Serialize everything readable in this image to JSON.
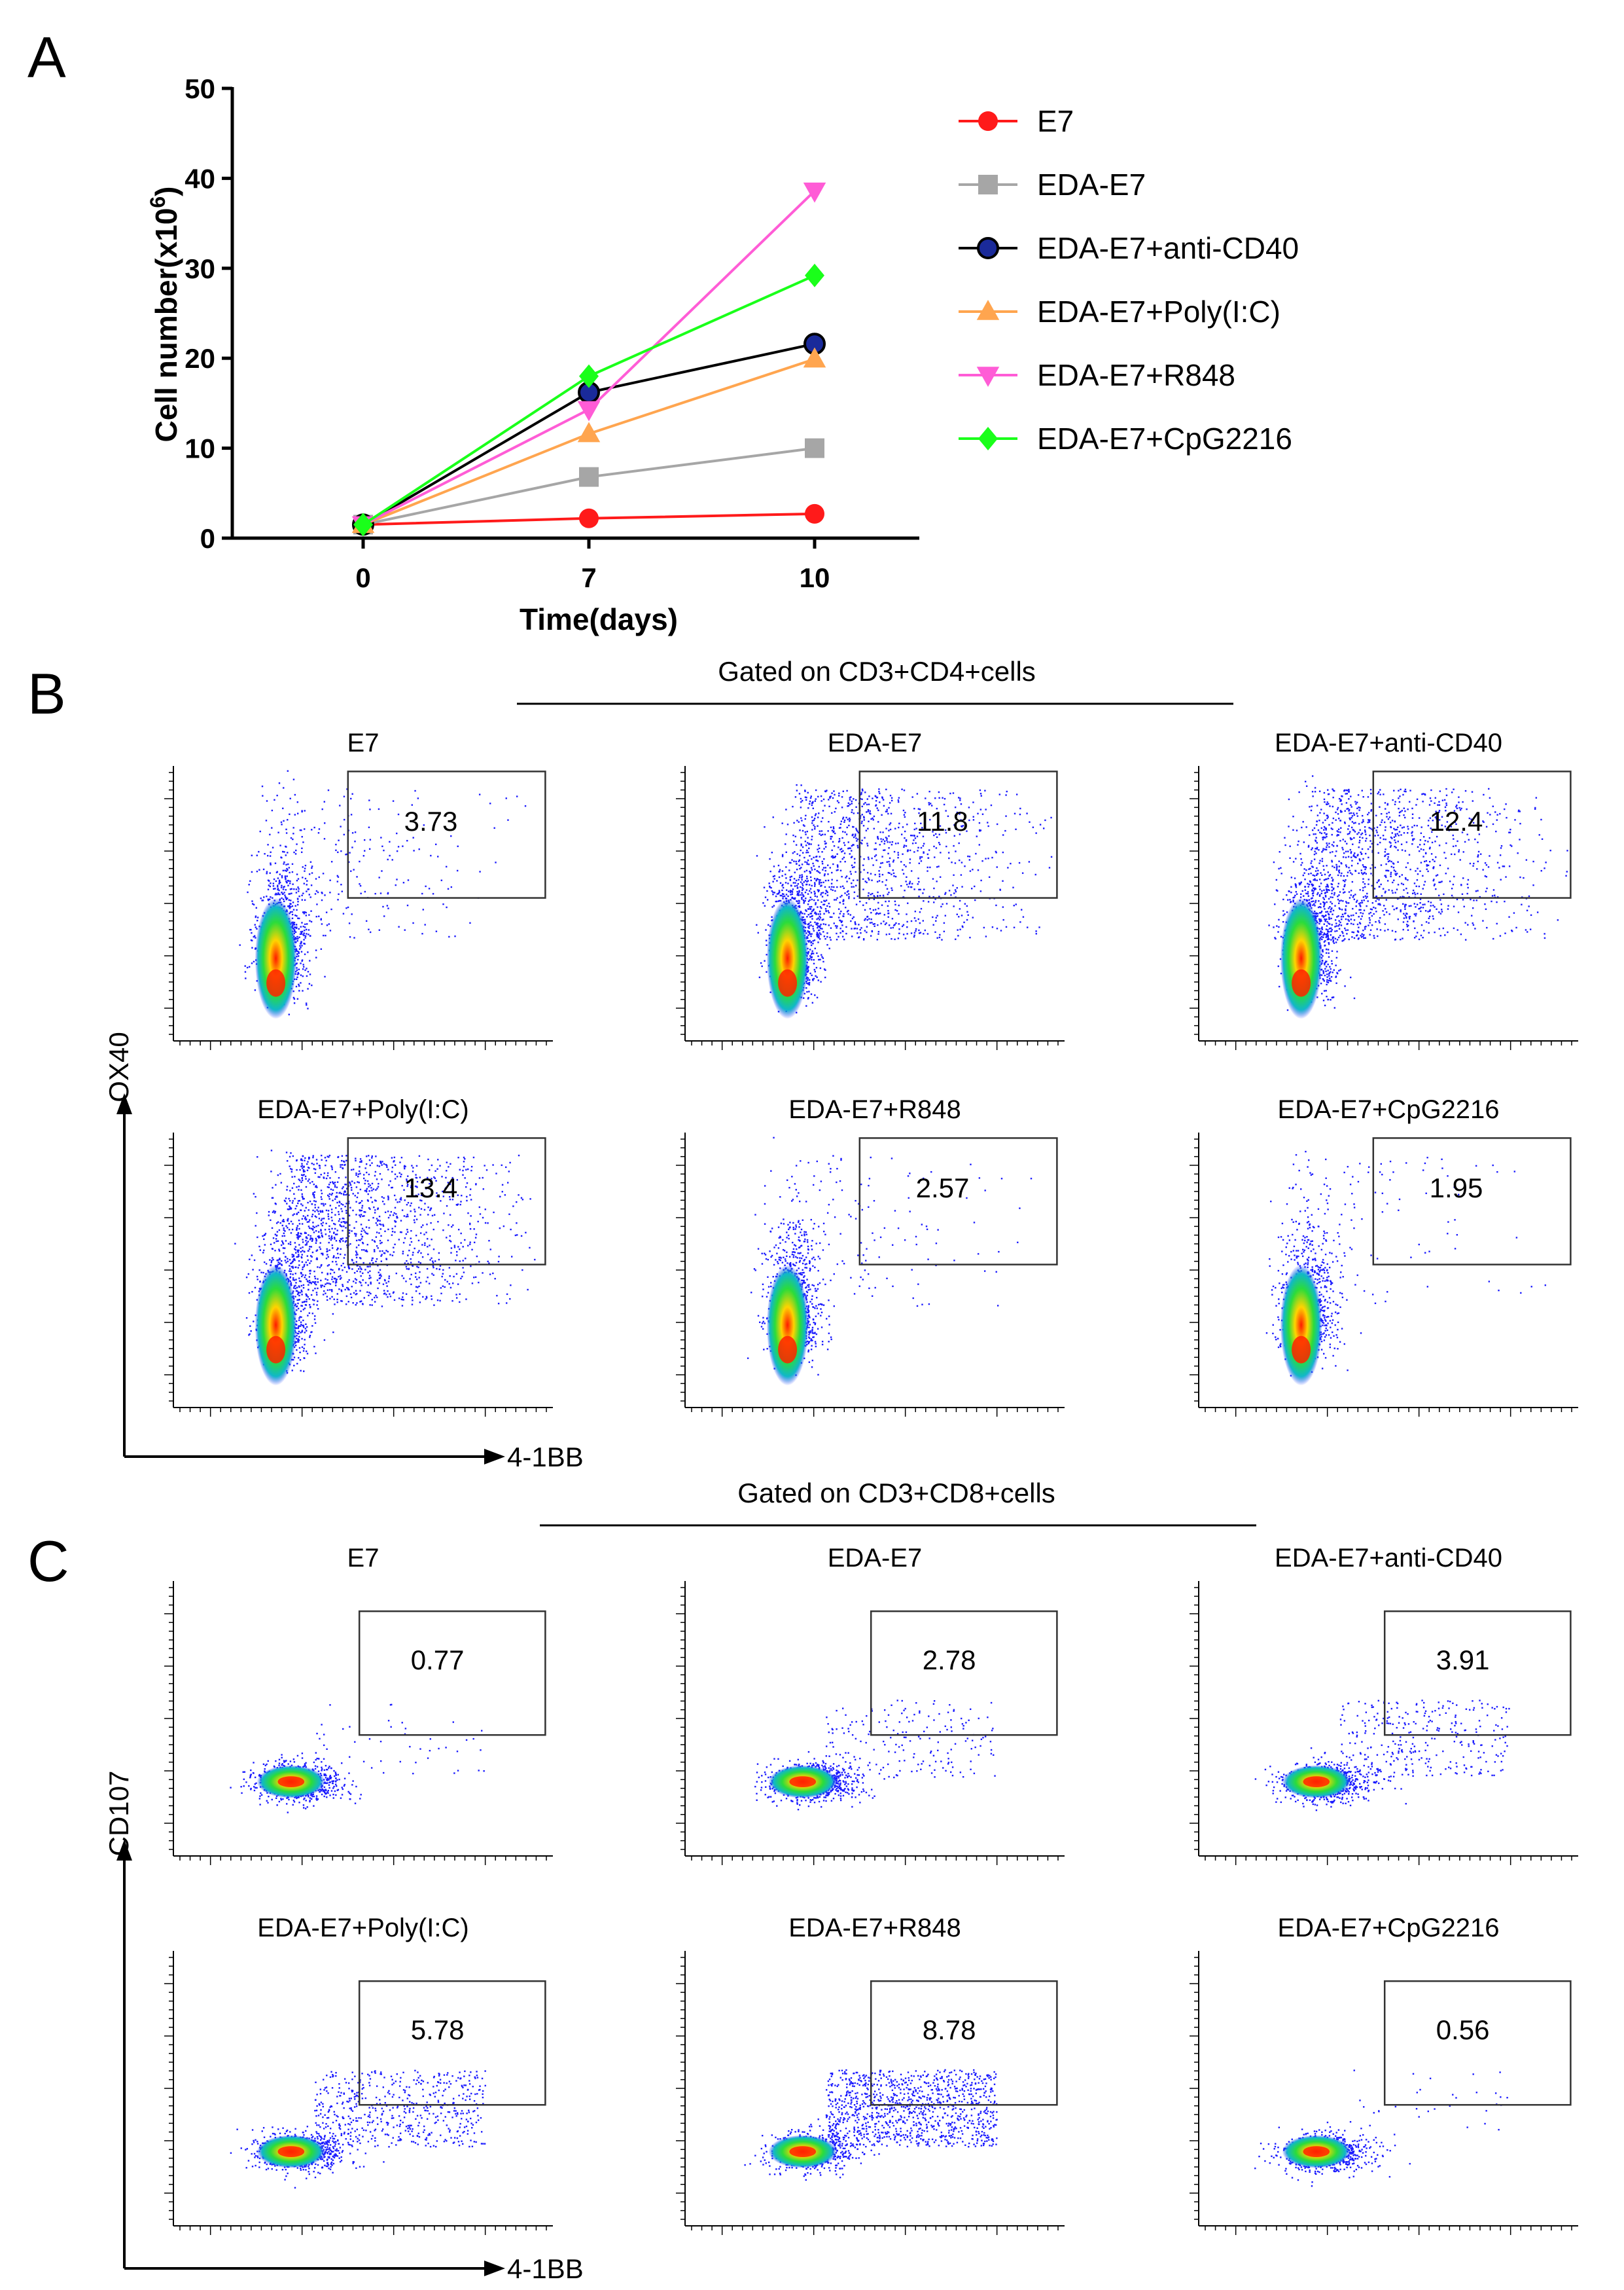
{
  "chart_data": [
    {
      "type": "line",
      "panel_label": "A",
      "title": "",
      "xlabel": "Time(days)",
      "ylabel_main": "Cell number(x10",
      "ylabel_sup": "6",
      "ylabel_close": ")",
      "x": [
        0,
        7,
        10
      ],
      "x_tick_labels": [
        "0",
        "7",
        "10"
      ],
      "ylim": [
        0,
        50
      ],
      "y_ticks": [
        0,
        10,
        20,
        30,
        40,
        50
      ],
      "y_tick_labels": [
        "0",
        "10",
        "20",
        "30",
        "40",
        "50"
      ],
      "legend_position": "right",
      "series": [
        {
          "name": "E7",
          "values": [
            1.5,
            2.2,
            2.7
          ],
          "color": "#ff1a1a",
          "marker": "circle"
        },
        {
          "name": "EDA-E7",
          "values": [
            1.5,
            6.8,
            10.0
          ],
          "color": "#a6a6a6",
          "marker": "square"
        },
        {
          "name": "EDA-E7+anti-CD40",
          "values": [
            1.5,
            16.2,
            21.6
          ],
          "color": "#000000",
          "marker": "circle-navy"
        },
        {
          "name": "EDA-E7+Poly(I:C)",
          "values": [
            1.5,
            11.6,
            19.9
          ],
          "color": "#ffa54f",
          "marker": "triangle-up"
        },
        {
          "name": "EDA-E7+R848",
          "values": [
            1.5,
            14.3,
            38.6
          ],
          "color": "#ff5cd6",
          "marker": "triangle-down"
        },
        {
          "name": "EDA-E7+CpG2216",
          "values": [
            1.5,
            18.0,
            29.2
          ],
          "color": "#1aff1a",
          "marker": "diamond"
        }
      ]
    },
    {
      "type": "scatter",
      "panel_label": "B",
      "gated_title": "Gated on CD3+CD4+cells",
      "xlabel": "4-1BB",
      "ylabel": "OX40",
      "plots": [
        {
          "title": "E7",
          "gate_value": "3.73",
          "gate_percent": 3.73
        },
        {
          "title": "EDA-E7",
          "gate_value": "11.8",
          "gate_percent": 11.8
        },
        {
          "title": "EDA-E7+anti-CD40",
          "gate_value": "12.4",
          "gate_percent": 12.4
        },
        {
          "title": "EDA-E7+Poly(I:C)",
          "gate_value": "13.4",
          "gate_percent": 13.4
        },
        {
          "title": "EDA-E7+R848",
          "gate_value": "2.57",
          "gate_percent": 2.57
        },
        {
          "title": "EDA-E7+CpG2216",
          "gate_value": "1.95",
          "gate_percent": 1.95
        }
      ]
    },
    {
      "type": "scatter",
      "panel_label": "C",
      "gated_title": "Gated on CD3+CD8+cells",
      "xlabel": "4-1BB",
      "ylabel": "CD107",
      "plots": [
        {
          "title": "E7",
          "gate_value": "0.77",
          "gate_percent": 0.77
        },
        {
          "title": "EDA-E7",
          "gate_value": "2.78",
          "gate_percent": 2.78
        },
        {
          "title": "EDA-E7+anti-CD40",
          "gate_value": "3.91",
          "gate_percent": 3.91
        },
        {
          "title": "EDA-E7+Poly(I:C)",
          "gate_value": "5.78",
          "gate_percent": 5.78
        },
        {
          "title": "EDA-E7+R848",
          "gate_value": "8.78",
          "gate_percent": 8.78
        },
        {
          "title": "EDA-E7+CpG2216",
          "gate_value": "0.56",
          "gate_percent": 0.56
        }
      ]
    }
  ]
}
